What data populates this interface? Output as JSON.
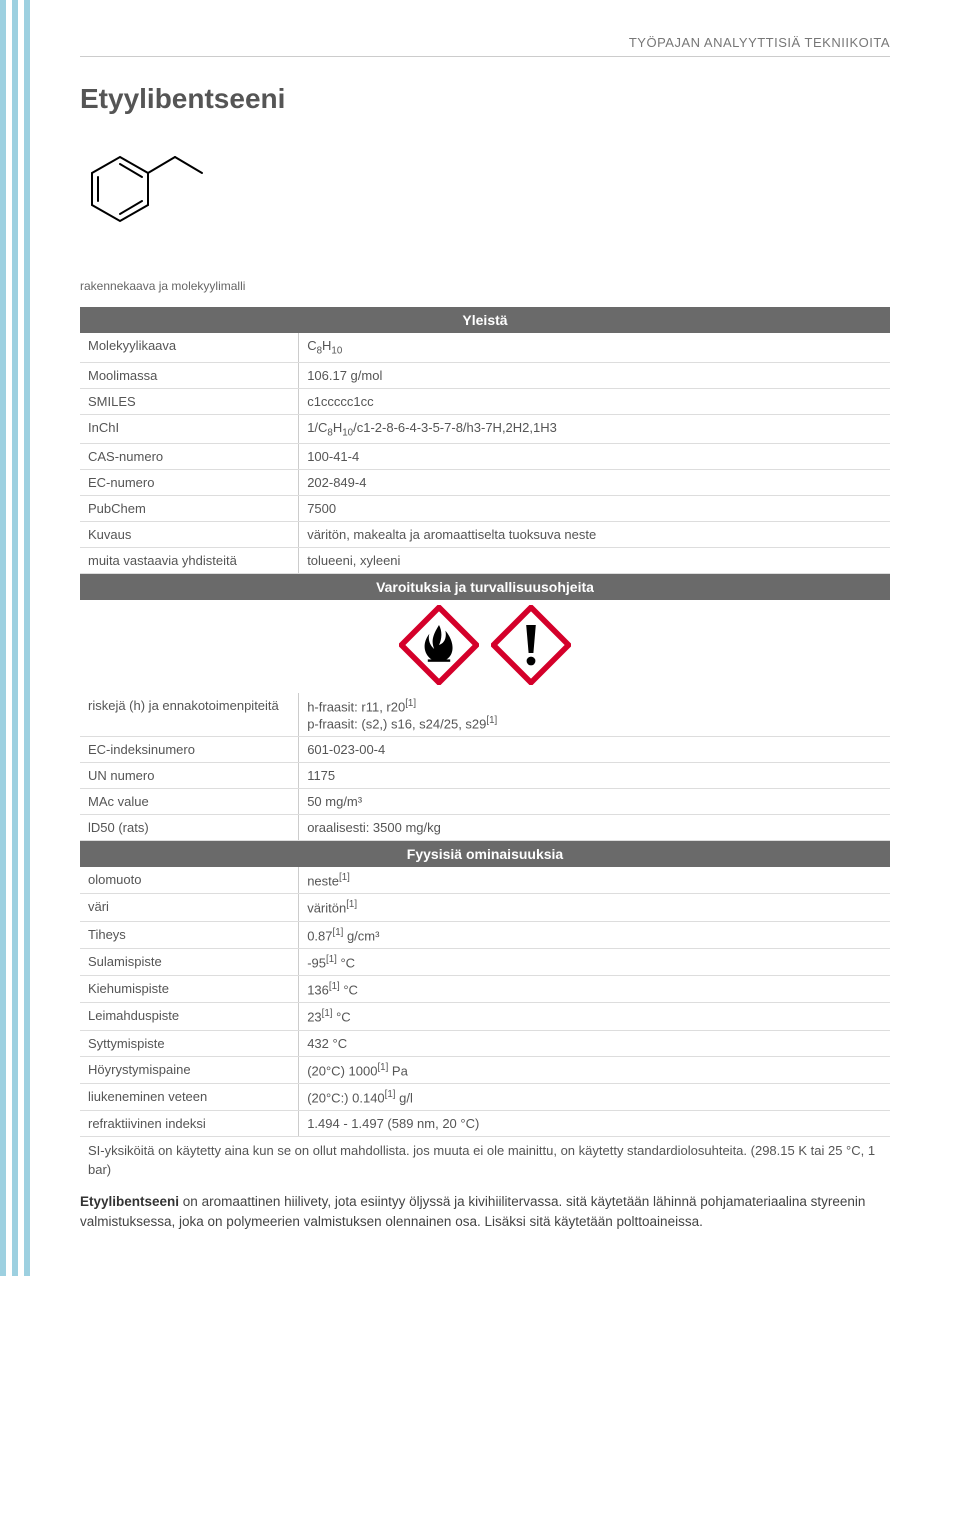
{
  "header_label": "TYÖPAJAN ANALYYTTISIÄ TEKNIIKOITA",
  "title": "Etyylibentseeni",
  "caption": "rakennekaava ja molekyylimalli",
  "sections": {
    "general": "Yleistä",
    "safety": "Varoituksia ja turvallisuusohjeita",
    "physical": "Fyysisiä ominaisuuksia"
  },
  "general": {
    "molformula_label": "Molekyylikaava",
    "molformula_val": "C₈H₁₀",
    "molmass_label": "Moolimassa",
    "molmass_val": "106.17 g/mol",
    "smiles_label": "SMILES",
    "smiles_val": "c1ccccc1cc",
    "inchi_label": "InChI",
    "inchi_val": "1/C₈H₁₀/c1-2-8-6-4-3-5-7-8/h3-7H,2H2,1H3",
    "cas_label": "CAS-numero",
    "cas_val": "100-41-4",
    "ec_label": "EC-numero",
    "ec_val": "202-849-4",
    "pubchem_label": "PubChem",
    "pubchem_val": "7500",
    "desc_label": "Kuvaus",
    "desc_val": "väritön, makealta ja aromaattiselta tuoksuva neste",
    "similar_label": "muita vastaavia yhdisteitä",
    "similar_val": "tolueeni, xyleeni"
  },
  "safety": {
    "risks_label": "riskejä (h) ja ennakotoimenpiteitä",
    "risks_html": "h-fraasit: r11, r20<sup>[1]</sup><br>p-fraasit: (s2,) s16, s24/25, s29<sup>[1]</sup>",
    "ecidx_label": "EC-indeksinumero",
    "ecidx_val": "601-023-00-4",
    "un_label": "UN numero",
    "un_val": "1175",
    "mac_label": "MAc value",
    "mac_val": "50 mg/m³",
    "ld50_label": "lD50 (rats)",
    "ld50_val": "oraalisesti: 3500 mg/kg"
  },
  "physical": {
    "state_label": "olomuoto",
    "state_html": "neste<sup>[1]</sup>",
    "color_label": "väri",
    "color_html": "väritön<sup>[1]</sup>",
    "density_label": "Tiheys",
    "density_html": "0.87<sup>[1]</sup> g/cm³",
    "mp_label": "Sulamispiste",
    "mp_html": "-95<sup>[1]</sup>  °C",
    "bp_label": "Kiehumispiste",
    "bp_html": "136<sup>[1]</sup> °C",
    "fp_label": "Leimahduspiste",
    "fp_html": "23<sup>[1]</sup>  °C",
    "ign_label": "Syttymispiste",
    "ign_val": "432 °C",
    "vap_label": "Höyrystymispaine",
    "vap_html": "(20°C) 1000<sup>[1]</sup> Pa",
    "sol_label": "liukeneminen veteen",
    "sol_html": "(20°C:) 0.140<sup>[1]</sup> g/l",
    "ref_label": "refraktiivinen indeksi",
    "ref_val": "1.494 - 1.497  (589 nm, 20 °C)"
  },
  "footnote": "SI-yksiköitä on käytetty aina kun se on ollut mahdollista. jos muuta ei ole mainittu, on käytetty standardiolosuhteita. (298.15 K tai 25 °C, 1 bar)",
  "description_html": "<b>Etyylibentseeni</b> on aromaattinen hiilivety, jota esiintyy öljyssä ja kivihiilitervassa. sitä käytetään lähinnä pohjamateriaalina styreenin valmistuksessa, joka on polymeerien valmistuksen olennainen osa. Lisäksi sitä käytetään polttoaineissa.",
  "colors": {
    "stripe": "#9dd0e0",
    "section_bg": "#6a6a6a",
    "ghs_red": "#d4002a"
  }
}
